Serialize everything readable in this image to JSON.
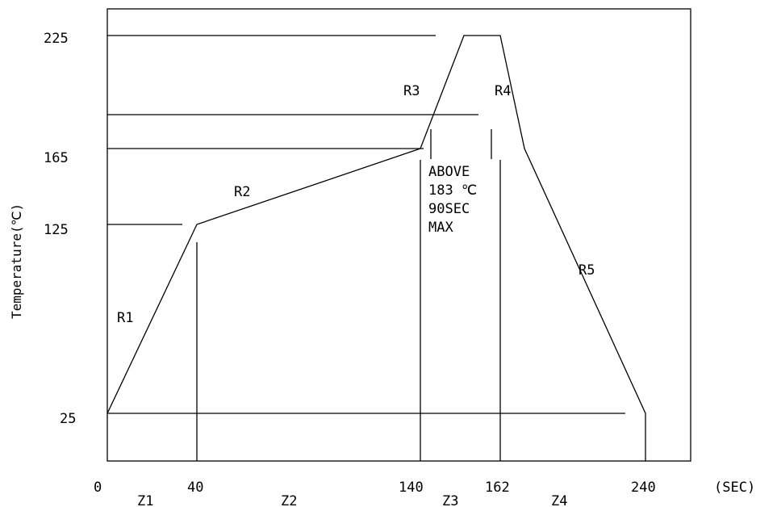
{
  "chart_data": {
    "type": "line",
    "title": "",
    "ylabel": "Temperature(℃)",
    "xunit": "(SEC)",
    "x_ticks": [
      "0",
      "40",
      "140",
      "162",
      "240"
    ],
    "y_ticks": [
      "25",
      "125",
      "165",
      "225"
    ],
    "series": [
      {
        "points": [
          {
            "x": 0,
            "y": 25
          },
          {
            "x": 40,
            "y": 125
          },
          {
            "x": 140,
            "y": 165
          },
          {
            "x": 152,
            "y": 225
          },
          {
            "x": 162,
            "y": 225
          },
          {
            "x": 175,
            "y": 165
          },
          {
            "x": 240,
            "y": 25
          },
          {
            "x": 240,
            "y": 0
          }
        ]
      }
    ],
    "ramp_labels": [
      "R1",
      "R2",
      "R3",
      "R4",
      "R5"
    ],
    "zone_labels": [
      "Z1",
      "Z2",
      "Z3",
      "Z4"
    ],
    "annotation": [
      "ABOVE",
      "183 ℃",
      "90SEC",
      "MAX"
    ]
  }
}
